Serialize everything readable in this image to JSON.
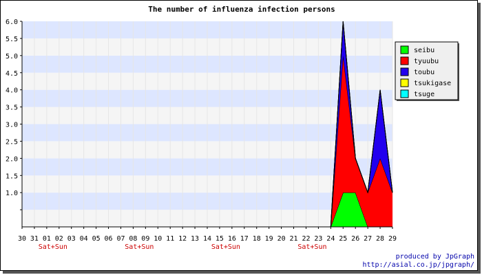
{
  "chart_data": {
    "type": "area",
    "stacked": true,
    "title": "The number of influenza infection persons",
    "categories": [
      "30",
      "31",
      "01",
      "02",
      "03",
      "04",
      "05",
      "06",
      "07",
      "08",
      "09",
      "10",
      "11",
      "12",
      "13",
      "14",
      "15",
      "16",
      "17",
      "18",
      "19",
      "20",
      "21",
      "22",
      "23",
      "24",
      "25",
      "26",
      "27",
      "28",
      "29"
    ],
    "weekend_label": "Sat+Sun",
    "weekend_after": [
      "01",
      "08",
      "15",
      "22"
    ],
    "ylim": [
      0,
      6
    ],
    "ytick_step": 0.5,
    "ytick_labels": [
      "",
      "1.0",
      "1.5",
      "2.0",
      "2.5",
      "3.0",
      "3.5",
      "4.0",
      "4.5",
      "5.0",
      "5.5",
      "6.0"
    ],
    "series": [
      {
        "name": "seibu",
        "color": "#00ff00",
        "values": [
          0,
          0,
          0,
          0,
          0,
          0,
          0,
          0,
          0,
          0,
          0,
          0,
          0,
          0,
          0,
          0,
          0,
          0,
          0,
          0,
          0,
          0,
          0,
          0,
          0,
          0,
          1,
          1,
          0,
          0,
          0
        ]
      },
      {
        "name": "tyuubu",
        "color": "#ff0000",
        "values": [
          0,
          0,
          0,
          0,
          0,
          0,
          0,
          0,
          0,
          0,
          0,
          0,
          0,
          0,
          0,
          0,
          0,
          0,
          0,
          0,
          0,
          0,
          0,
          0,
          0,
          0,
          4,
          1,
          1,
          2,
          1
        ]
      },
      {
        "name": "toubu",
        "color": "#2200ee",
        "values": [
          0,
          0,
          0,
          0,
          0,
          0,
          0,
          0,
          0,
          0,
          0,
          0,
          0,
          0,
          0,
          0,
          0,
          0,
          0,
          0,
          0,
          0,
          0,
          0,
          0,
          0,
          1,
          0,
          0,
          2,
          0
        ]
      },
      {
        "name": "tsukigase",
        "color": "#ffff00",
        "values": [
          0,
          0,
          0,
          0,
          0,
          0,
          0,
          0,
          0,
          0,
          0,
          0,
          0,
          0,
          0,
          0,
          0,
          0,
          0,
          0,
          0,
          0,
          0,
          0,
          0,
          0,
          0,
          0,
          0,
          0,
          0
        ]
      },
      {
        "name": "tsuge",
        "color": "#00ffff",
        "values": [
          0,
          0,
          0,
          0,
          0,
          0,
          0,
          0,
          0,
          0,
          0,
          0,
          0,
          0,
          0,
          0,
          0,
          0,
          0,
          0,
          0,
          0,
          0,
          0,
          0,
          0,
          0,
          0,
          0,
          0,
          0
        ]
      }
    ],
    "legend_position": "top-right",
    "band_colors": [
      "#f5f5f5",
      "#dde6ff"
    ],
    "credit_lines": [
      "produced by JpGraph",
      "http://asial.co.jp/jpgraph/"
    ]
  }
}
